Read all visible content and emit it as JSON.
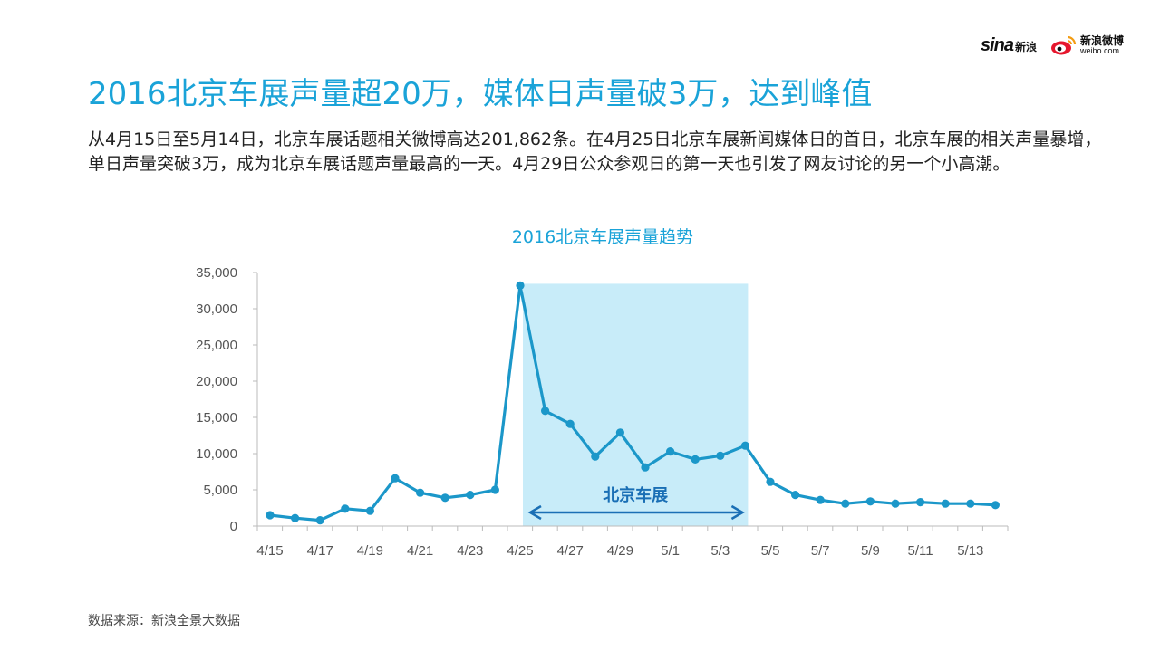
{
  "header": {
    "title": "2016北京车展声量超20万，媒体日声量破3万，达到峰值",
    "description": "从4月15日至5月14日，北京车展话题相关微博高达201,862条。在4月25日北京车展新闻媒体日的首日，北京车展的相关声量暴增，单日声量突破3万，成为北京车展话题声量最高的一天。4月29日公众参观日的第一天也引发了网友讨论的另一个小高潮。"
  },
  "logos": {
    "sina_text": "sina",
    "sina_cn": "新浪",
    "weibo_cn": "新浪微博",
    "weibo_en": "weibo.com"
  },
  "footer": {
    "source": "数据来源：新浪全景大数据"
  },
  "colors": {
    "title": "#1aa3d8",
    "line": "#1b97c9",
    "band": "#c8ecf9",
    "band_label": "#1a6fb5"
  },
  "chart_data": {
    "type": "line",
    "title": "2016北京车展声量趋势",
    "x": [
      "4/15",
      "4/16",
      "4/17",
      "4/18",
      "4/19",
      "4/20",
      "4/21",
      "4/22",
      "4/23",
      "4/24",
      "4/25",
      "4/26",
      "4/27",
      "4/28",
      "4/29",
      "4/30",
      "5/1",
      "5/2",
      "5/3",
      "5/4",
      "5/5",
      "5/6",
      "5/7",
      "5/8",
      "5/9",
      "5/10",
      "5/11",
      "5/12",
      "5/13",
      "5/14"
    ],
    "x_tick_labels": [
      "4/15",
      "4/17",
      "4/19",
      "4/21",
      "4/23",
      "4/25",
      "4/27",
      "4/29",
      "5/1",
      "5/3",
      "5/5",
      "5/7",
      "5/9",
      "5/11",
      "5/13"
    ],
    "values": [
      1500,
      1100,
      800,
      2400,
      2100,
      6600,
      4600,
      3900,
      4300,
      5000,
      33200,
      15900,
      14100,
      9600,
      12900,
      8100,
      10300,
      9200,
      9700,
      11100,
      6100,
      4300,
      3600,
      3100,
      3400,
      3100,
      3300,
      3100,
      3100,
      2900
    ],
    "ylim": [
      0,
      35000
    ],
    "y_ticks": [
      0,
      5000,
      10000,
      15000,
      20000,
      25000,
      30000,
      35000
    ],
    "y_tick_labels": [
      "0",
      "5,000",
      "10,000",
      "15,000",
      "20,000",
      "25,000",
      "30,000",
      "35,000"
    ],
    "highlight": {
      "start": "4/25",
      "end": "5/4",
      "label": "北京车展"
    },
    "grid": false
  }
}
